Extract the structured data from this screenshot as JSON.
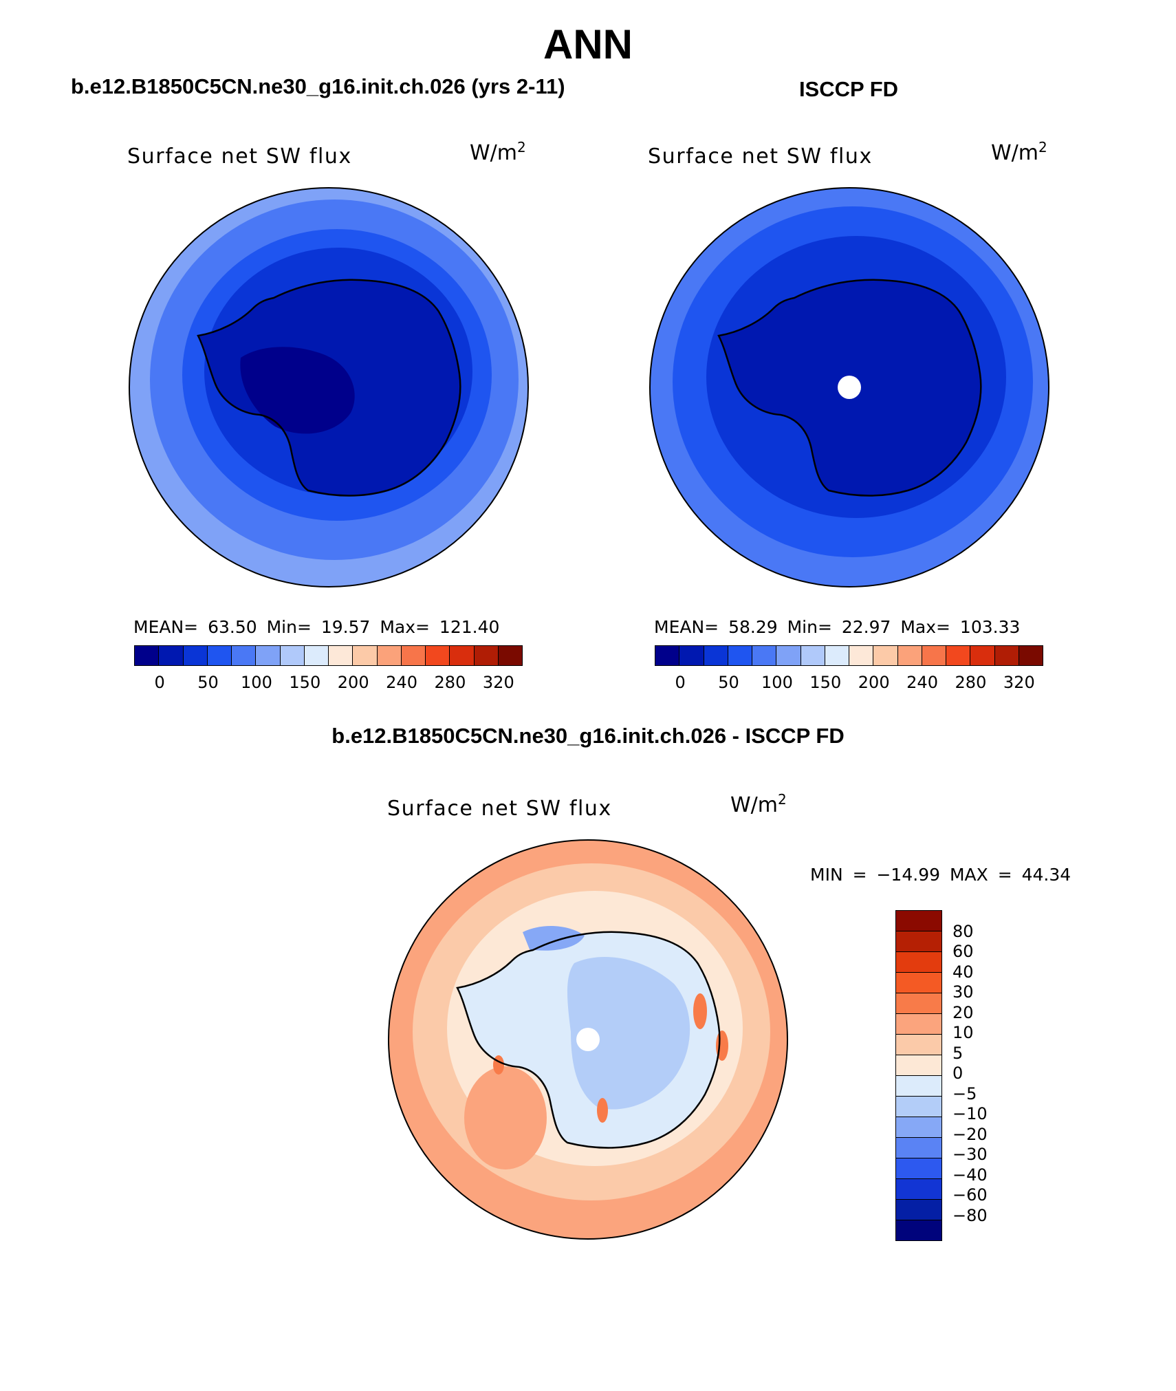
{
  "page_title": "ANN",
  "panels": [
    {
      "title": "b.e12.B1850C5CN.ne30_g16.init.ch.026 (yrs 2-11)",
      "variable": "Surface net SW flux",
      "unit_base": "W/m",
      "unit_exp": "2",
      "stats": "MEAN=  63.50  Min=  19.57  Max= 121.40"
    },
    {
      "title": "ISCCP FD",
      "variable": "Surface net SW flux",
      "unit_base": "W/m",
      "unit_exp": "2",
      "stats": "MEAN=  58.29  Min=  22.97  Max= 103.33"
    }
  ],
  "difference": {
    "title": "b.e12.B1850C5CN.ne30_g16.init.ch.026 - ISCCP FD",
    "variable": "Surface net SW flux",
    "unit_base": "W/m",
    "unit_exp": "2",
    "stats": "MIN = −14.99 MAX =  44.34"
  },
  "colorbar_abs": {
    "colors": [
      "#00008b",
      "#0018b0",
      "#0a35d6",
      "#1f55f0",
      "#4a78f5",
      "#7fa2f7",
      "#b0c9fa",
      "#dcebfc",
      "#fde8d8",
      "#fccaa8",
      "#fba27a",
      "#f7754a",
      "#f2481e",
      "#d92e0d",
      "#b01d05",
      "#7a0a00"
    ],
    "tick_labels": [
      "0",
      "50",
      "100",
      "150",
      "200",
      "240",
      "280",
      "320"
    ]
  },
  "colorbar_diff": {
    "colors": [
      "#8b0a00",
      "#b52004",
      "#e33c0e",
      "#f45a24",
      "#f87b49",
      "#fba47d",
      "#fbcaa9",
      "#fde8d6",
      "#dcebfb",
      "#b3cdf8",
      "#86a8f6",
      "#5a83f4",
      "#2d59ef",
      "#1235d4",
      "#041fa5",
      "#00037c"
    ],
    "tick_labels": [
      "80",
      "60",
      "40",
      "30",
      "20",
      "10",
      "5",
      "0",
      "−5",
      "−10",
      "−20",
      "−30",
      "−40",
      "−60",
      "−80"
    ]
  },
  "map_fills": {
    "model": {
      "ocean_outer": "#7fa2f7",
      "ocean_mid": "#4a78f5",
      "ocean_inner": "#1f55f0",
      "coast_ring": "#0a35d6",
      "interior": "#0018b0",
      "core": "#00008b"
    },
    "obs": {
      "ocean_outer": "#4a78f5",
      "ocean_mid": "#1f55f0",
      "ocean_inner": "#0a35d6",
      "interior": "#0018b0",
      "polar_hole": "#ffffff"
    },
    "diff": {
      "ocean_outer": "#fba47d",
      "ocean_mid": "#fbcaa9",
      "ocean_inner": "#fde8d6",
      "ice": "#dcebfb",
      "interior": "#b3cdf8",
      "ross_patch": "#86a8f6",
      "hotspot": "#f87b49",
      "polar_hole": "#ffffff"
    }
  }
}
